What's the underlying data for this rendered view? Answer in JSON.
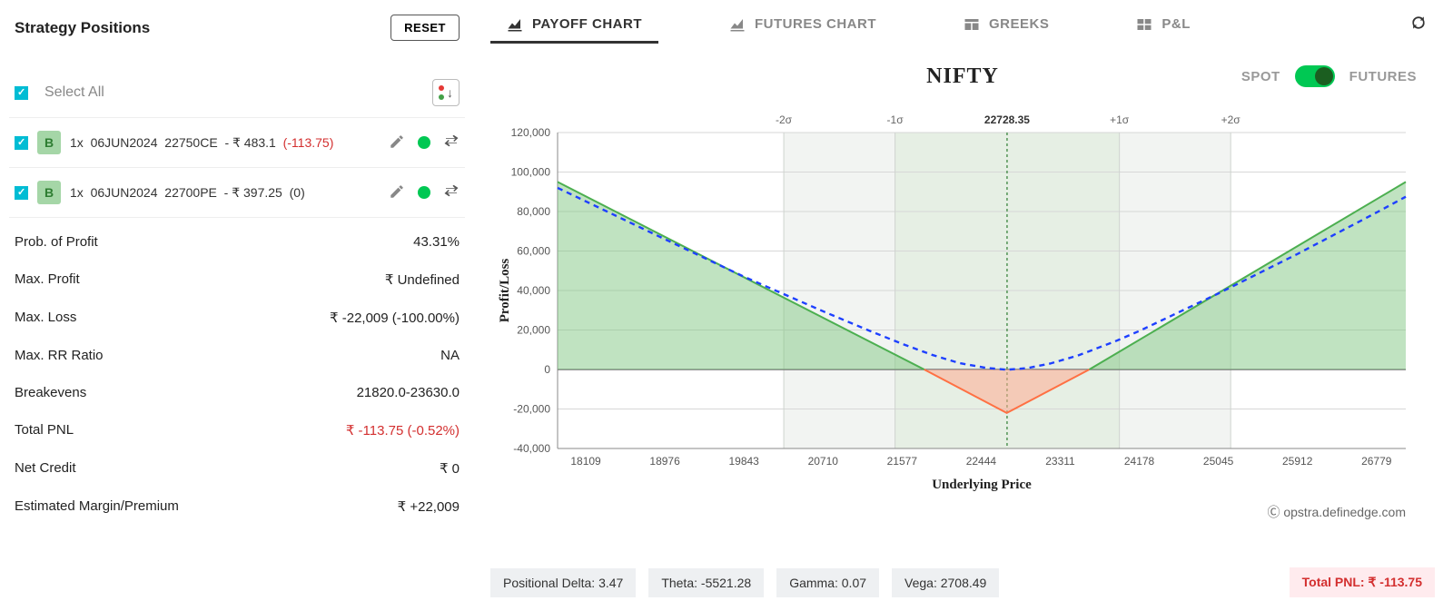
{
  "left": {
    "title": "Strategy Positions",
    "reset_label": "RESET",
    "select_all_label": "Select All",
    "positions": [
      {
        "side": "B",
        "qty": "1x",
        "expiry": "06JUN2024",
        "strike": "22750CE",
        "price": "- ₹ 483.1",
        "change": "(-113.75)",
        "change_neg": true
      },
      {
        "side": "B",
        "qty": "1x",
        "expiry": "06JUN2024",
        "strike": "22700PE",
        "price": "- ₹ 397.25",
        "change": "(0)",
        "change_neg": false
      }
    ],
    "stats": {
      "pop_label": "Prob. of Profit",
      "pop": "43.31%",
      "maxp_label": "Max. Profit",
      "maxp": "₹ Undefined",
      "maxl_label": "Max. Loss",
      "maxl": "₹ -22,009 (-100.00%)",
      "rr_label": "Max. RR Ratio",
      "rr": "NA",
      "be_label": "Breakevens",
      "be": "21820.0-23630.0",
      "pnl_label": "Total PNL",
      "pnl": "₹ -113.75 (-0.52%)",
      "nc_label": "Net Credit",
      "nc": "₹ 0",
      "em_label": "Estimated Margin/Premium",
      "em": "₹ +22,009"
    }
  },
  "tabs": {
    "payoff": "PAYOFF CHART",
    "futures": "FUTURES CHART",
    "greeks": "GREEKS",
    "pnl": "P&L"
  },
  "head": {
    "symbol": "NIFTY",
    "spot": "SPOT",
    "futures": "FUTURES"
  },
  "chart": {
    "type": "line-area",
    "x_label": "Underlying Price",
    "y_label": "Profit/Loss",
    "x_ticks": [
      18109,
      18976,
      19843,
      20710,
      21577,
      22444,
      23311,
      24178,
      25045,
      25912,
      26779
    ],
    "y_ticks": [
      -40000,
      -20000,
      0,
      20000,
      40000,
      60000,
      80000,
      100000,
      120000
    ],
    "y_tick_labels": [
      "-40,000",
      "-20,000",
      "0",
      "20,000",
      "40,000",
      "60,000",
      "80,000",
      "100,000",
      "120,000"
    ],
    "xlim": [
      17800,
      27100
    ],
    "ylim": [
      -40000,
      120000
    ],
    "spot_line": 22728.35,
    "spot_label": "22728.35",
    "sigma_bands": [
      {
        "label": "-2σ",
        "x": 20280
      },
      {
        "label": "-1σ",
        "x": 21500
      },
      {
        "label": "+1σ",
        "x": 23960
      },
      {
        "label": "+2σ",
        "x": 25180
      }
    ],
    "sigma_band_fill_inner": "#e6efe4",
    "sigma_band_fill_outer": "#f2f4f2",
    "expiry_series": {
      "color_pos": "#4caf50",
      "color_neg": "#ff7043",
      "fill_pos": "rgba(129,199,132,0.5)",
      "fill_neg": "rgba(255,171,145,0.55)",
      "points": [
        [
          17800,
          95000
        ],
        [
          21820,
          0
        ],
        [
          22725,
          -22009
        ],
        [
          23630,
          0
        ],
        [
          27100,
          95000
        ]
      ],
      "be_low": 21820,
      "be_high": 23630,
      "vertex_x": 22725,
      "vertex_y": -22009
    },
    "tplus_series": {
      "color": "#1e40ff",
      "dash": "6 5",
      "width": 2.4,
      "points": [
        [
          17800,
          92000
        ],
        [
          18976,
          66000
        ],
        [
          19843,
          47000
        ],
        [
          20710,
          29500
        ],
        [
          21200,
          20000
        ],
        [
          21577,
          13000
        ],
        [
          21900,
          7500
        ],
        [
          22200,
          3300
        ],
        [
          22500,
          800
        ],
        [
          22728,
          -100
        ],
        [
          22950,
          700
        ],
        [
          23200,
          3000
        ],
        [
          23500,
          7000
        ],
        [
          23900,
          14000
        ],
        [
          24178,
          19500
        ],
        [
          25045,
          38500
        ],
        [
          25912,
          58500
        ],
        [
          26779,
          79500
        ],
        [
          27100,
          87500
        ]
      ]
    },
    "grid_color": "#d7d7d7",
    "axis_font": "12",
    "label_font_family": "Georgia, 'Times New Roman', serif",
    "background": "#ffffff"
  },
  "watermark": "opstra.definedge.com",
  "greeks_bar": {
    "delta_label": "Positional Delta: ",
    "delta": "3.47",
    "theta_label": "Theta: ",
    "theta": "-5521.28",
    "gamma_label": "Gamma: ",
    "gamma": "0.07",
    "vega_label": "Vega: ",
    "vega": "2708.49",
    "total_label": "Total PNL: ",
    "total": "₹ -113.75"
  }
}
